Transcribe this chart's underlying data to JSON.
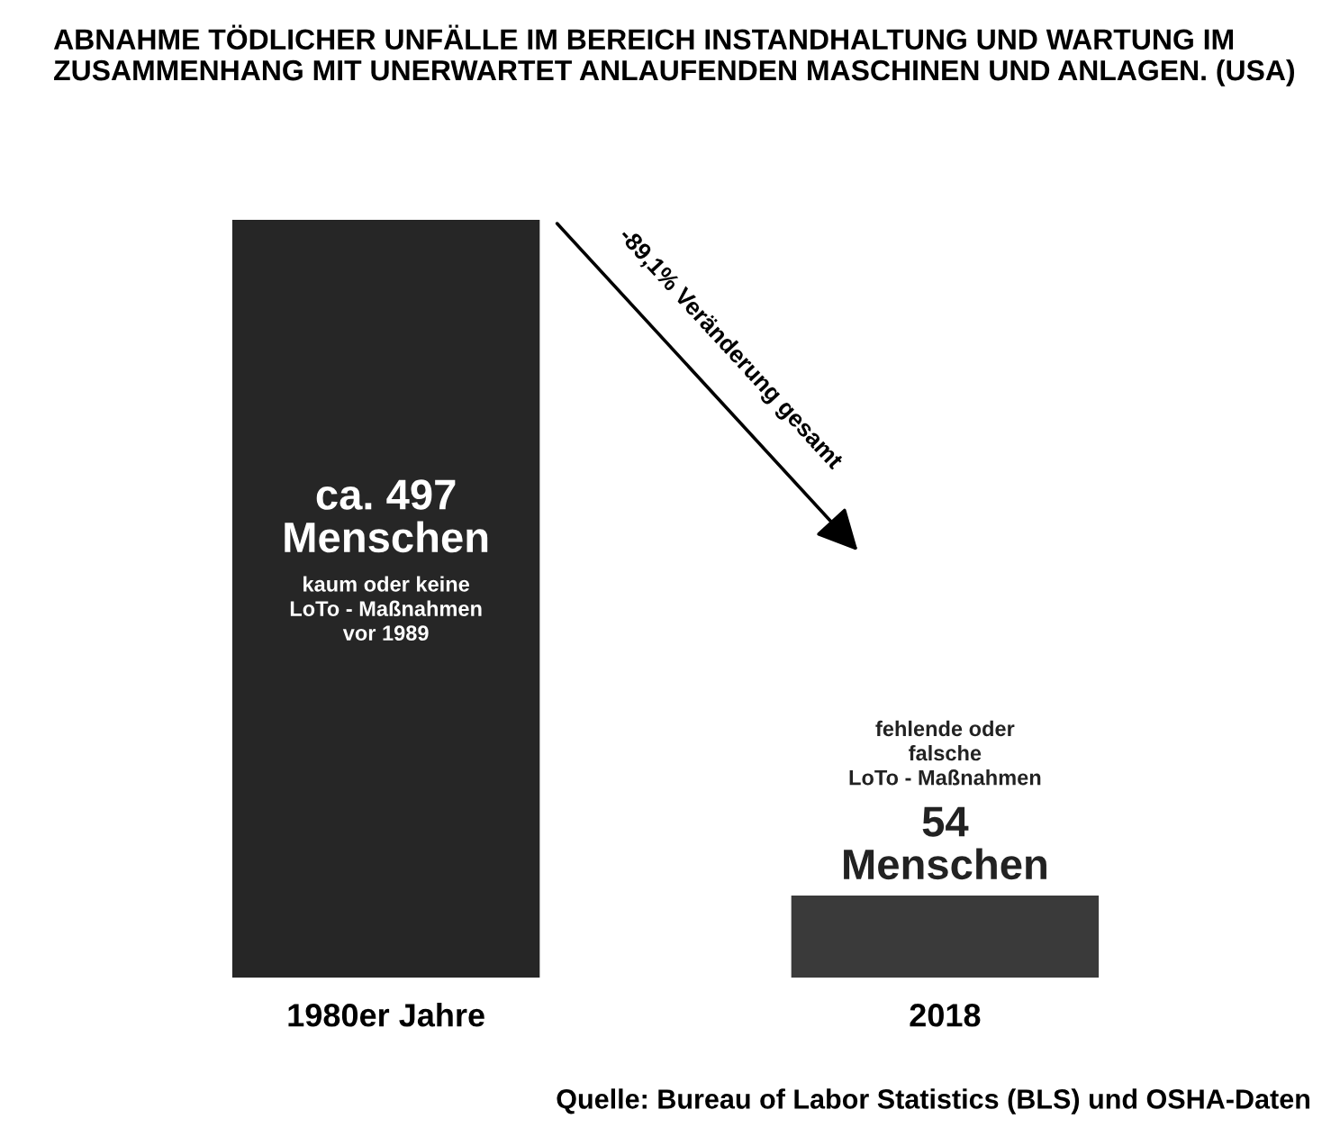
{
  "chart_data": {
    "type": "bar",
    "title": "ABNAHME TÖDLICHER UNFÄLLE IM BEREICH INSTANDHALTUNG UND WARTUNG IM ZUSAMMENHANG MIT UNERWARTET ANLAUFENDEN MASCHINEN UND ANLAGEN. (USA)",
    "categories": [
      "1980er Jahre",
      "2018"
    ],
    "values": [
      497,
      54
    ],
    "colors": [
      "#262626",
      "#3a3a3a"
    ],
    "value_labels": [
      "ca. 497\nMenschen",
      "54\nMenschen"
    ],
    "annotations": [
      "kaum oder keine\nLoTo - Maßnahmen\nvor 1989",
      "fehlende oder\nfalsche\nLoTo - Maßnahmen",
      "-89,1% Veränderung gesamt",
      "Quelle: Bureau of Labor Statistics (BLS) und OSHA-Daten"
    ],
    "grid": false,
    "legend": false,
    "tick_labels": "x"
  }
}
